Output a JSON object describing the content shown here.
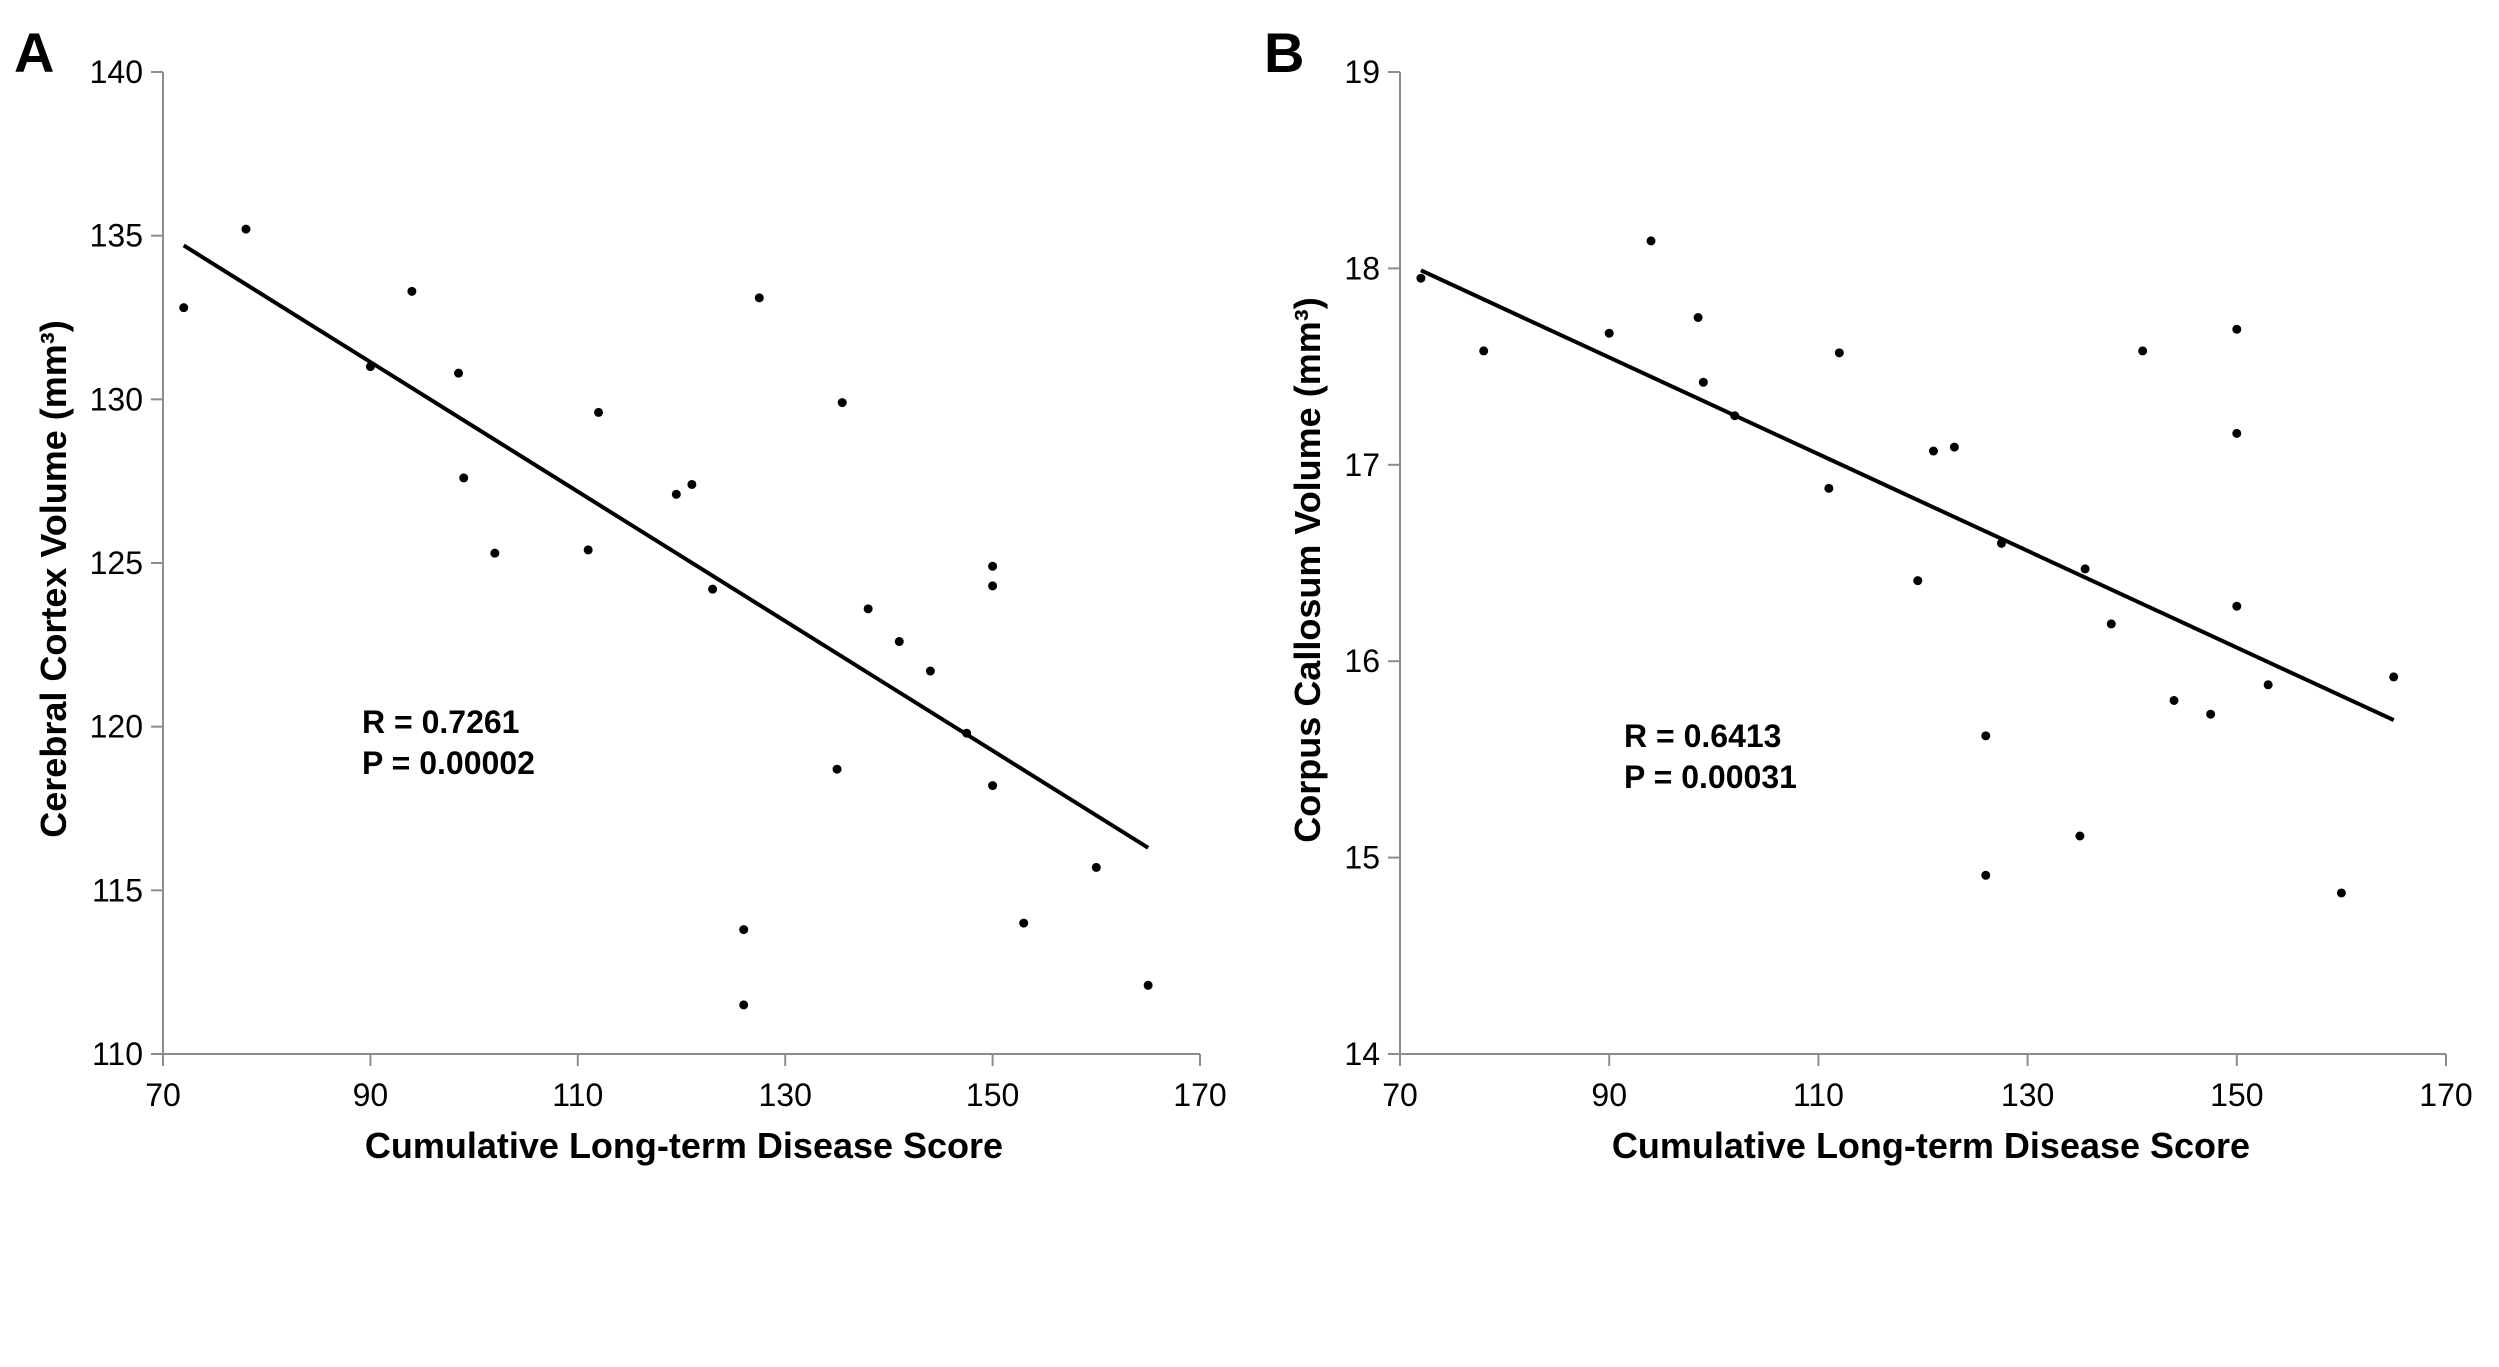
{
  "chart_data": [
    {
      "type": "scatter",
      "panel_label": "A",
      "title": "",
      "xlabel": "Cumulative Long-term Disease Score",
      "ylabel": "Cerebral Cortex Volume (mm³)",
      "xlim": [
        70,
        170
      ],
      "ylim": [
        110,
        140
      ],
      "xticks": [
        70,
        90,
        110,
        130,
        150,
        170
      ],
      "yticks": [
        110,
        115,
        120,
        125,
        130,
        135,
        140
      ],
      "grid": false,
      "points": [
        {
          "x": 72,
          "y": 132.8
        },
        {
          "x": 78,
          "y": 135.2
        },
        {
          "x": 90,
          "y": 131.0
        },
        {
          "x": 94,
          "y": 133.3
        },
        {
          "x": 98.5,
          "y": 130.8
        },
        {
          "x": 99,
          "y": 127.6
        },
        {
          "x": 102,
          "y": 125.3
        },
        {
          "x": 111,
          "y": 125.4
        },
        {
          "x": 112,
          "y": 129.6
        },
        {
          "x": 119.5,
          "y": 127.1
        },
        {
          "x": 121,
          "y": 127.4
        },
        {
          "x": 123,
          "y": 124.2
        },
        {
          "x": 126,
          "y": 113.8
        },
        {
          "x": 126,
          "y": 111.5
        },
        {
          "x": 127.5,
          "y": 133.1
        },
        {
          "x": 135,
          "y": 118.7
        },
        {
          "x": 135.5,
          "y": 129.9
        },
        {
          "x": 138,
          "y": 123.6
        },
        {
          "x": 141,
          "y": 122.6
        },
        {
          "x": 144,
          "y": 121.7
        },
        {
          "x": 147.5,
          "y": 119.8
        },
        {
          "x": 150,
          "y": 124.9
        },
        {
          "x": 150,
          "y": 124.3
        },
        {
          "x": 150,
          "y": 118.2
        },
        {
          "x": 153,
          "y": 114.0
        },
        {
          "x": 160,
          "y": 115.7
        },
        {
          "x": 165,
          "y": 112.1
        }
      ],
      "trendline": {
        "x1": 72,
        "y1": 134.7,
        "x2": 165,
        "y2": 116.3
      },
      "annotations": [
        "R = 0.7261",
        "P = 0.00002"
      ]
    },
    {
      "type": "scatter",
      "panel_label": "B",
      "title": "",
      "xlabel": "Cumulative Long-term Disease Score",
      "ylabel": "Corpus Callosum Volume (mm³)",
      "xlim": [
        70,
        170
      ],
      "ylim": [
        14,
        19
      ],
      "xticks": [
        70,
        90,
        110,
        130,
        150,
        170
      ],
      "yticks": [
        14,
        15,
        16,
        17,
        18,
        19
      ],
      "grid": false,
      "points": [
        {
          "x": 72,
          "y": 17.95
        },
        {
          "x": 78,
          "y": 17.58
        },
        {
          "x": 90,
          "y": 17.67
        },
        {
          "x": 94,
          "y": 18.14
        },
        {
          "x": 98.5,
          "y": 17.75
        },
        {
          "x": 99,
          "y": 17.42
        },
        {
          "x": 102,
          "y": 17.25
        },
        {
          "x": 111,
          "y": 16.88
        },
        {
          "x": 112,
          "y": 17.57
        },
        {
          "x": 119.5,
          "y": 16.41
        },
        {
          "x": 121,
          "y": 17.07
        },
        {
          "x": 123,
          "y": 17.09
        },
        {
          "x": 126,
          "y": 15.62
        },
        {
          "x": 126,
          "y": 14.91
        },
        {
          "x": 127.5,
          "y": 16.6
        },
        {
          "x": 135,
          "y": 15.11
        },
        {
          "x": 135.5,
          "y": 16.47
        },
        {
          "x": 138,
          "y": 16.19
        },
        {
          "x": 141,
          "y": 17.58
        },
        {
          "x": 144,
          "y": 15.8
        },
        {
          "x": 147.5,
          "y": 15.73
        },
        {
          "x": 150,
          "y": 17.69
        },
        {
          "x": 150,
          "y": 17.16
        },
        {
          "x": 150,
          "y": 16.28
        },
        {
          "x": 153,
          "y": 15.88
        },
        {
          "x": 160,
          "y": 14.82
        },
        {
          "x": 165,
          "y": 15.92
        }
      ],
      "trendline": {
        "x1": 72,
        "y1": 17.99,
        "x2": 165,
        "y2": 15.7
      },
      "annotations": [
        "R = 0.6413",
        "P = 0.00031"
      ]
    }
  ]
}
